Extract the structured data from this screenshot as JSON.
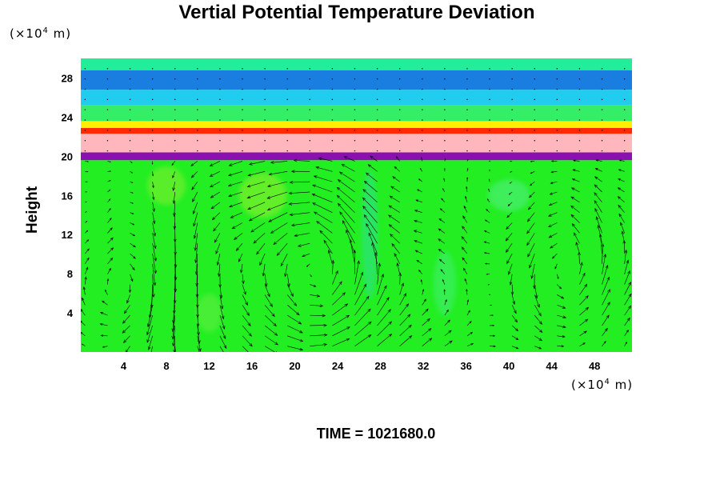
{
  "chart_data": {
    "type": "heatmap",
    "title": "Vertial Potential Temperature Deviation",
    "ylabel": "Height",
    "x_unit_prefix": "(×10",
    "x_unit_exp": "4",
    "x_unit_suffix": " m)",
    "y_unit_prefix": "(×10",
    "y_unit_exp": "4",
    "y_unit_suffix": " m)",
    "xlim": [
      0,
      51.5
    ],
    "ylim": [
      0,
      30
    ],
    "x_ticks": [
      4,
      8,
      12,
      16,
      20,
      24,
      28,
      32,
      36,
      40,
      44,
      48
    ],
    "y_ticks": [
      4,
      8,
      12,
      16,
      20,
      24,
      28
    ],
    "overlay": "velocity vectors",
    "layers": [
      {
        "y_from": 0,
        "y_to": 19.6,
        "color": "#22ee22"
      },
      {
        "y_from": 19.6,
        "y_to": 20.4,
        "color": "#8a10b0"
      },
      {
        "y_from": 20.4,
        "y_to": 22.3,
        "color": "#ffb7bd"
      },
      {
        "y_from": 22.3,
        "y_to": 22.9,
        "color": "#ff2a00"
      },
      {
        "y_from": 22.9,
        "y_to": 23.6,
        "color": "#ffee00"
      },
      {
        "y_from": 23.6,
        "y_to": 25.2,
        "color": "#33ee66"
      },
      {
        "y_from": 25.2,
        "y_to": 26.8,
        "color": "#22ccee"
      },
      {
        "y_from": 26.8,
        "y_to": 28.8,
        "color": "#1a7ee0"
      },
      {
        "y_from": 28.8,
        "y_to": 30,
        "color": "#22ee99"
      }
    ],
    "eddies": [
      {
        "x": 20.5,
        "y": 7.5,
        "radius": 7.5,
        "spin": 1
      },
      {
        "x": 44.5,
        "y": 8.0,
        "radius": 5.0,
        "spin": 1
      },
      {
        "x": 3.0,
        "y": 6.0,
        "radius": 4.0,
        "spin": -1
      }
    ]
  },
  "time": {
    "label": "TIME = 1021680.0"
  }
}
